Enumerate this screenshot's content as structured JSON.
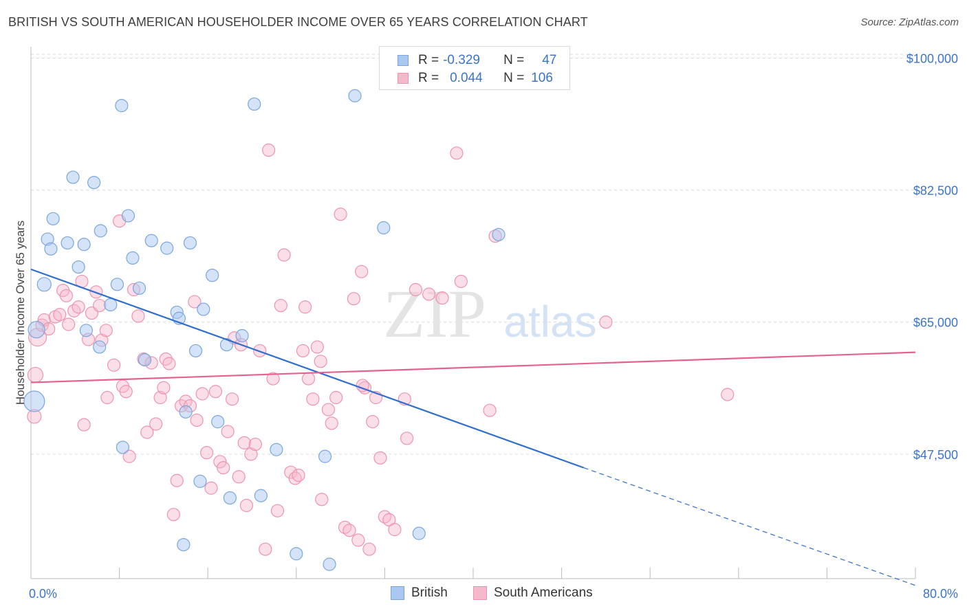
{
  "title": "BRITISH VS SOUTH AMERICAN HOUSEHOLDER INCOME OVER 65 YEARS CORRELATION CHART",
  "source": "Source: ZipAtlas.com",
  "watermark": {
    "zip": "ZIP",
    "atlas": "atlas"
  },
  "legend": {
    "british": {
      "r_label": "R =",
      "r_value": "-0.329",
      "n_label": "N =",
      "n_value": "47"
    },
    "south_americans": {
      "r_label": "R =",
      "r_value": "0.044",
      "n_label": "N =",
      "n_value": "106"
    }
  },
  "bottom_legend": {
    "british": "British",
    "south_americans": "South Americans"
  },
  "colors": {
    "british_fill": "#aac8ef",
    "british_stroke": "#7aa6de",
    "british_line": "#2f6fd0",
    "sa_fill": "#f6b9cb",
    "sa_stroke": "#ee93ae",
    "sa_line": "#e5628e",
    "axis_text": "#3a74c9",
    "grid": "#d9d9d9"
  },
  "chart_data": {
    "type": "scatter",
    "title": "BRITISH VS SOUTH AMERICAN HOUSEHOLDER INCOME OVER 65 YEARS CORRELATION CHART",
    "xlabel": "",
    "ylabel": "Householder Income Over 65 years",
    "xlim": [
      0,
      80
    ],
    "ylim": [
      31000,
      101500
    ],
    "x_tick_labels": [
      "0.0%",
      "80.0%"
    ],
    "y_ticks": [
      47500,
      65000,
      82500,
      100000
    ],
    "y_tick_labels": [
      "$47,500",
      "$65,000",
      "$82,500",
      "$100,000"
    ],
    "grid": "horizontal dashed",
    "legend_position": "top-center",
    "series": [
      {
        "name": "British",
        "trendline": {
          "x": [
            0,
            50
          ],
          "y": [
            72000,
            45700
          ],
          "dashed_extension_to": [
            80,
            30100
          ]
        },
        "points": [
          [
            0.3,
            54500,
            30
          ],
          [
            0.5,
            64000,
            24
          ],
          [
            1.2,
            70000,
            20
          ],
          [
            1.5,
            76000,
            18
          ],
          [
            2.0,
            78700,
            18
          ],
          [
            1.8,
            74700,
            18
          ],
          [
            3.3,
            75500,
            18
          ],
          [
            3.8,
            84200,
            18
          ],
          [
            4.3,
            72300,
            18
          ],
          [
            4.8,
            75300,
            18
          ],
          [
            5.0,
            63900,
            18
          ],
          [
            5.7,
            83500,
            18
          ],
          [
            6.3,
            77100,
            18
          ],
          [
            6.2,
            61700,
            18
          ],
          [
            7.2,
            67300,
            18
          ],
          [
            7.8,
            70000,
            18
          ],
          [
            8.2,
            93700,
            18
          ],
          [
            8.8,
            79100,
            18
          ],
          [
            9.2,
            73500,
            18
          ],
          [
            9.8,
            69500,
            18
          ],
          [
            10.3,
            60000,
            18
          ],
          [
            10.9,
            75800,
            18
          ],
          [
            12.3,
            74800,
            18
          ],
          [
            13.2,
            66300,
            18
          ],
          [
            13.4,
            65500,
            18
          ],
          [
            13.8,
            35500,
            18
          ],
          [
            14.0,
            53100,
            18
          ],
          [
            14.4,
            75500,
            18
          ],
          [
            14.9,
            61200,
            18
          ],
          [
            15.3,
            43900,
            18
          ],
          [
            15.6,
            66700,
            18
          ],
          [
            16.4,
            71200,
            18
          ],
          [
            16.9,
            51800,
            18
          ],
          [
            17.7,
            62000,
            18
          ],
          [
            18.0,
            41700,
            18
          ],
          [
            19.1,
            63200,
            18
          ],
          [
            20.2,
            93900,
            18
          ],
          [
            20.8,
            42000,
            18
          ],
          [
            22.2,
            48100,
            18
          ],
          [
            24.0,
            34300,
            18
          ],
          [
            26.6,
            47200,
            18
          ],
          [
            27.0,
            32900,
            18
          ],
          [
            29.3,
            95000,
            18
          ],
          [
            31.9,
            77500,
            18
          ],
          [
            8.3,
            48400,
            18
          ],
          [
            35.1,
            37000,
            18
          ],
          [
            42.3,
            76600,
            18
          ]
        ]
      },
      {
        "name": "South Americans",
        "trendline": {
          "x": [
            0,
            80
          ],
          "y": [
            57000,
            61000
          ]
        },
        "points": [
          [
            0.3,
            52500,
            20
          ],
          [
            0.4,
            58000,
            22
          ],
          [
            0.6,
            63000,
            26
          ],
          [
            1.0,
            64600,
            18
          ],
          [
            1.2,
            65300,
            18
          ],
          [
            1.6,
            64100,
            18
          ],
          [
            2.2,
            65700,
            18
          ],
          [
            2.6,
            66000,
            18
          ],
          [
            2.9,
            69200,
            18
          ],
          [
            3.2,
            68500,
            18
          ],
          [
            3.4,
            64700,
            18
          ],
          [
            3.9,
            66500,
            18
          ],
          [
            4.3,
            67000,
            18
          ],
          [
            4.6,
            70400,
            18
          ],
          [
            4.8,
            51400,
            18
          ],
          [
            5.2,
            62700,
            18
          ],
          [
            5.5,
            66200,
            18
          ],
          [
            5.9,
            69000,
            18
          ],
          [
            6.2,
            67200,
            18
          ],
          [
            6.4,
            62600,
            18
          ],
          [
            6.8,
            63900,
            18
          ],
          [
            6.9,
            55000,
            18
          ],
          [
            7.5,
            59300,
            18
          ],
          [
            8.0,
            78400,
            18
          ],
          [
            8.3,
            56500,
            18
          ],
          [
            8.6,
            55800,
            18
          ],
          [
            8.9,
            47200,
            18
          ],
          [
            9.3,
            69300,
            18
          ],
          [
            9.7,
            65800,
            18
          ],
          [
            10.2,
            60100,
            18
          ],
          [
            10.5,
            50400,
            18
          ],
          [
            10.9,
            59600,
            18
          ],
          [
            11.3,
            51500,
            18
          ],
          [
            11.7,
            55000,
            18
          ],
          [
            12.0,
            56300,
            18
          ],
          [
            12.2,
            60100,
            18
          ],
          [
            12.5,
            59500,
            18
          ],
          [
            12.9,
            39500,
            18
          ],
          [
            13.2,
            44000,
            18
          ],
          [
            13.6,
            53900,
            18
          ],
          [
            14.0,
            54500,
            18
          ],
          [
            14.4,
            53900,
            18
          ],
          [
            14.8,
            67700,
            18
          ],
          [
            15.0,
            52000,
            18
          ],
          [
            15.5,
            55500,
            18
          ],
          [
            15.9,
            47700,
            18
          ],
          [
            16.3,
            43000,
            18
          ],
          [
            16.7,
            55800,
            18
          ],
          [
            17.1,
            46500,
            18
          ],
          [
            17.4,
            45700,
            18
          ],
          [
            17.8,
            50500,
            18
          ],
          [
            18.2,
            54800,
            18
          ],
          [
            18.4,
            62900,
            18
          ],
          [
            18.8,
            44500,
            18
          ],
          [
            19.3,
            49000,
            18
          ],
          [
            19.5,
            40700,
            18
          ],
          [
            19.9,
            47500,
            18
          ],
          [
            20.3,
            48800,
            18
          ],
          [
            20.7,
            61200,
            18
          ],
          [
            21.2,
            34900,
            18
          ],
          [
            21.5,
            87800,
            18
          ],
          [
            21.9,
            57500,
            18
          ],
          [
            22.3,
            40000,
            18
          ],
          [
            22.6,
            67200,
            18
          ],
          [
            22.9,
            73900,
            18
          ],
          [
            23.5,
            45100,
            18
          ],
          [
            23.9,
            44300,
            18
          ],
          [
            24.2,
            44700,
            18
          ],
          [
            24.6,
            61200,
            18
          ],
          [
            25.1,
            57500,
            18
          ],
          [
            25.5,
            54800,
            18
          ],
          [
            25.9,
            61700,
            18
          ],
          [
            26.3,
            41500,
            18
          ],
          [
            26.9,
            53400,
            18
          ],
          [
            27.2,
            51600,
            18
          ],
          [
            27.6,
            55000,
            18
          ],
          [
            28.0,
            79300,
            18
          ],
          [
            28.4,
            37800,
            18
          ],
          [
            28.8,
            37400,
            18
          ],
          [
            29.2,
            68100,
            18
          ],
          [
            29.6,
            36100,
            18
          ],
          [
            29.9,
            71700,
            18
          ],
          [
            30.2,
            56300,
            18
          ],
          [
            30.6,
            34900,
            18
          ],
          [
            30.9,
            51800,
            18
          ],
          [
            31.2,
            55000,
            18
          ],
          [
            31.6,
            47000,
            18
          ],
          [
            32.0,
            39200,
            18
          ],
          [
            32.4,
            38800,
            18
          ],
          [
            32.9,
            37500,
            18
          ],
          [
            33.8,
            54800,
            18
          ],
          [
            34.0,
            49600,
            18
          ],
          [
            36.0,
            68700,
            18
          ],
          [
            37.2,
            68200,
            18
          ],
          [
            38.5,
            87400,
            18
          ],
          [
            38.9,
            70400,
            18
          ],
          [
            41.5,
            53300,
            18
          ],
          [
            42.0,
            76400,
            18
          ],
          [
            52.0,
            65000,
            18
          ],
          [
            63.0,
            55400,
            18
          ],
          [
            34.8,
            69300,
            18
          ],
          [
            35.6,
            100000,
            18
          ],
          [
            19.0,
            62000,
            18
          ],
          [
            24.8,
            67000,
            18
          ],
          [
            30.0,
            56600,
            18
          ],
          [
            26.2,
            59800,
            18
          ]
        ]
      }
    ]
  }
}
